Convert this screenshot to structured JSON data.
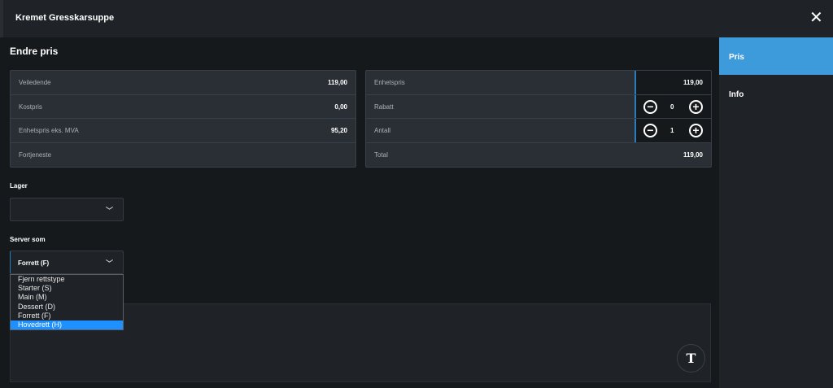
{
  "header": {
    "title": "Kremet Gresskarsuppe",
    "close_icon": "close-icon"
  },
  "main": {
    "heading": "Endre pris",
    "left_table": [
      {
        "label": "Veiledende",
        "value": "119,00"
      },
      {
        "label": "Kostpris",
        "value": "0,00"
      },
      {
        "label": "Enhetspris eks. MVA",
        "value": "95,20"
      },
      {
        "label": "Fortjeneste",
        "value": ""
      }
    ],
    "right_table": {
      "unit_price": {
        "label": "Enhetspris",
        "value": "119,00"
      },
      "discount": {
        "label": "Rabatt",
        "value": "0"
      },
      "quantity": {
        "label": "Antall",
        "value": "1"
      },
      "total": {
        "label": "Total",
        "value": "119,00"
      }
    },
    "lager": {
      "label": "Lager",
      "value": ""
    },
    "serve_as": {
      "label": "Server som",
      "value": "Forrett (F)",
      "options": [
        "Fjern rettstype",
        "Starter (S)",
        "Main (M)",
        "Dessert (D)",
        "Forrett (F)",
        "Hovedrett (H)"
      ],
      "highlighted": "Hovedrett (H)"
    },
    "text_button": "T"
  },
  "sidebar": {
    "tabs": [
      {
        "label": "Pris",
        "active": true
      },
      {
        "label": "Info",
        "active": false
      }
    ],
    "accent": "#3d9bdc"
  }
}
